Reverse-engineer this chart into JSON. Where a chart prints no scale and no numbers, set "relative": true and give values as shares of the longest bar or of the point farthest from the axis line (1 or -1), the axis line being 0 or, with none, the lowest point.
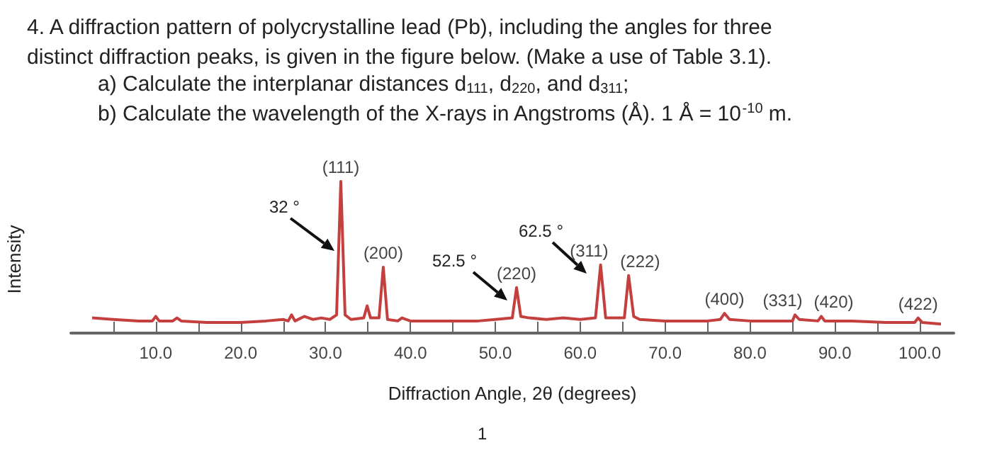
{
  "chart_data": {
    "type": "line",
    "title": "4. A diffraction pattern of polycrystalline lead (Pb), including the angles for three\ndistinct diffraction peaks, is given in the figure below. (Make a use of Table 3.1).",
    "subtitle": "a) Calculate the interplanar distances d$_{111}$, d$_{220}$, and d$_{311}$;\nb) Calculate the wavelength of the X-rays in Angstroms (Å). 1 Å = 10$^{-10}$ m.",
    "xlabel": "Diffraction Angle, 2θ (degrees)",
    "ylabel": "Intensity",
    "relative": true,
    "xlim": [
      0,
      104
    ],
    "xticks": [
      {
        "value": 5,
        "label": null
      },
      {
        "value": 10,
        "label": "10.0"
      },
      {
        "value": 15,
        "label": null
      },
      {
        "value": 20,
        "label": "20.0"
      },
      {
        "value": 25,
        "label": null
      },
      {
        "value": 30,
        "label": "30.0"
      },
      {
        "value": 35,
        "label": null
      },
      {
        "value": 40,
        "label": "40.0"
      },
      {
        "value": 45,
        "label": null
      },
      {
        "value": 50,
        "label": "50.0"
      },
      {
        "value": 55,
        "label": null
      },
      {
        "value": 60,
        "label": "60.0"
      },
      {
        "value": 65,
        "label": null
      },
      {
        "value": 70,
        "label": "70.0"
      },
      {
        "value": 75,
        "label": null
      },
      {
        "value": 80,
        "label": "80.0"
      },
      {
        "value": 85,
        "label": null
      },
      {
        "value": 90,
        "label": "90.0"
      },
      {
        "value": 95,
        "label": null
      },
      {
        "value": 100,
        "label": "100.0"
      }
    ],
    "series": [
      {
        "color": "#c4403f",
        "x": [
          2.5,
          5,
          8,
          9.6,
          10,
          10.4,
          12,
          12.5,
          13,
          16,
          20,
          23,
          25,
          25.6,
          26,
          26.4,
          27.5,
          28.5,
          29.5,
          30.5,
          31.3,
          31.8,
          32.3,
          33,
          34.5,
          34.9,
          35.3,
          36.3,
          36.8,
          37.3,
          38.5,
          39,
          40,
          45,
          48,
          50,
          52,
          52.5,
          53,
          54,
          56,
          58,
          60,
          61.8,
          62.4,
          63,
          65.2,
          65.7,
          66.3,
          67,
          70,
          75,
          76.5,
          77,
          77.6,
          80,
          85,
          85.3,
          85.8,
          88,
          88.4,
          88.8,
          92,
          96,
          99.4,
          99.8,
          100.3,
          102.5
        ],
        "values": [
          0.1,
          0.09,
          0.08,
          0.08,
          0.11,
          0.08,
          0.08,
          0.1,
          0.08,
          0.07,
          0.07,
          0.08,
          0.09,
          0.08,
          0.12,
          0.08,
          0.11,
          0.09,
          0.1,
          0.09,
          0.12,
          1.0,
          0.12,
          0.09,
          0.1,
          0.18,
          0.1,
          0.1,
          0.435,
          0.09,
          0.08,
          0.1,
          0.08,
          0.08,
          0.08,
          0.09,
          0.1,
          0.3,
          0.11,
          0.1,
          0.09,
          0.1,
          0.09,
          0.1,
          0.45,
          0.1,
          0.1,
          0.38,
          0.11,
          0.09,
          0.08,
          0.08,
          0.09,
          0.13,
          0.09,
          0.08,
          0.08,
          0.12,
          0.09,
          0.08,
          0.11,
          0.08,
          0.08,
          0.07,
          0.07,
          0.1,
          0.07,
          0.06
        ]
      }
    ],
    "annotations": [
      {
        "text": "(111)",
        "x": 31.8,
        "y": 1.0
      },
      {
        "text": "(200)",
        "x": 36.8,
        "y": 0.435
      },
      {
        "text": "(220)",
        "x": 52.5,
        "y": 0.3
      },
      {
        "text": "(311)",
        "x": 62.4,
        "y": 0.45
      },
      {
        "text": "(222)",
        "x": 65.7,
        "y": 0.38
      },
      {
        "text": "(400)",
        "x": 77,
        "y": 0.13
      },
      {
        "text": "(331)",
        "x": 85.3,
        "y": 0.12
      },
      {
        "text": "(420)",
        "x": 88.4,
        "y": 0.11
      },
      {
        "text": "(422)",
        "x": 99.8,
        "y": 0.1
      },
      "32 °",
      "52.5 °",
      "62.5 °",
      "1"
    ]
  }
}
